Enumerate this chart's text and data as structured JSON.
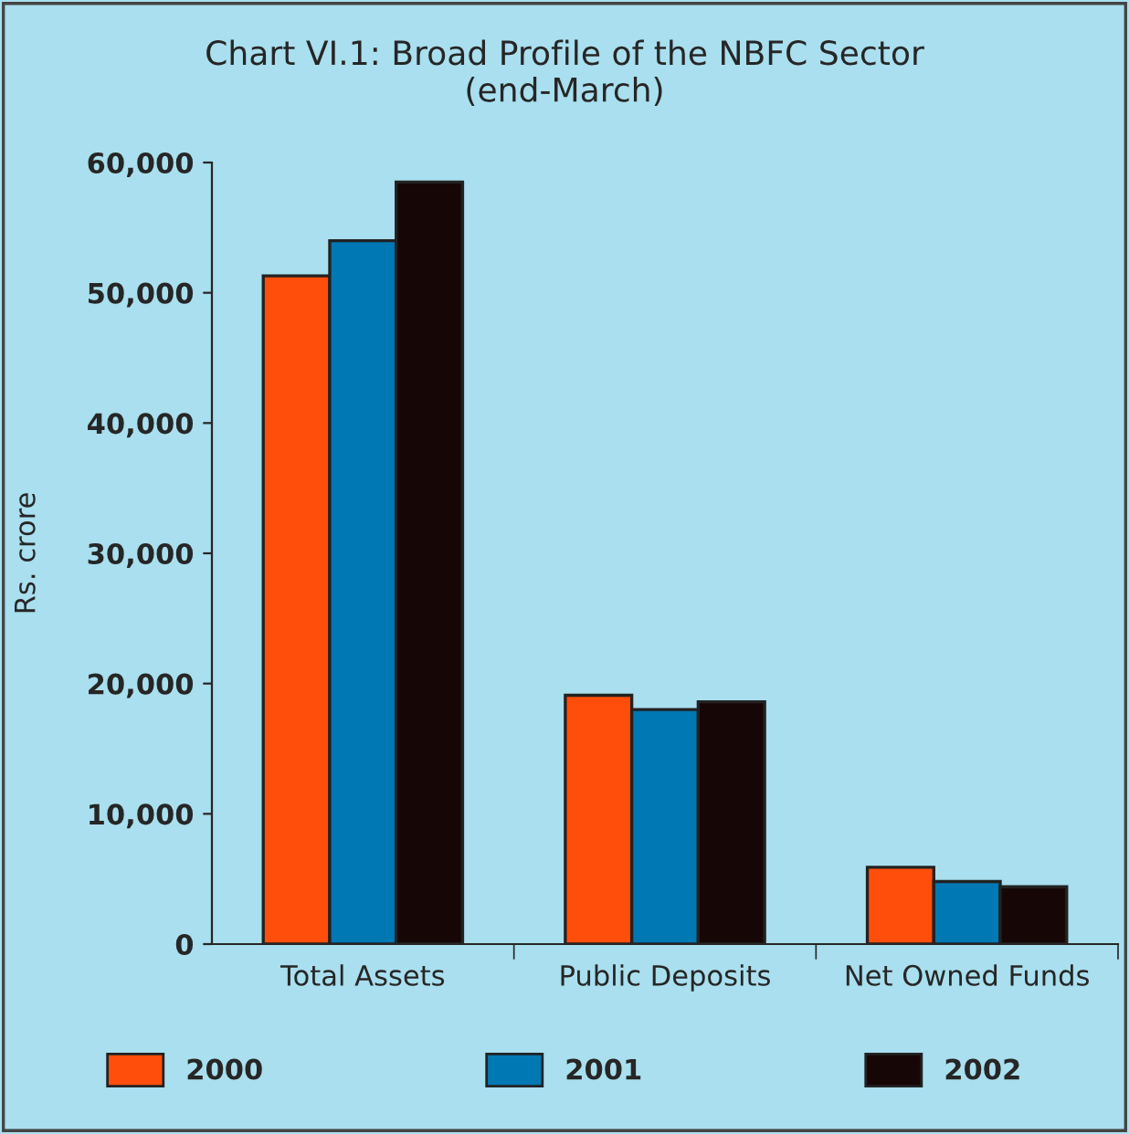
{
  "chart_data": {
    "type": "bar",
    "title": "Chart VI.1: Broad Profile of the NBFC Sector\n(end-March)",
    "ylabel": "Rs. crore",
    "categories": [
      "Total Assets",
      "Public Deposits",
      "Net Owned Funds"
    ],
    "series": [
      {
        "name": "2000",
        "color": "#ff4e0b",
        "values": [
          51300,
          19100,
          5900
        ]
      },
      {
        "name": "2001",
        "color": "#0078b4",
        "values": [
          54000,
          18000,
          4800
        ]
      },
      {
        "name": "2002",
        "color": "#170606",
        "values": [
          58500,
          18600,
          4400
        ]
      }
    ],
    "ylim": [
      0,
      60000
    ],
    "yticks": [
      {
        "value": 0,
        "label": "0"
      },
      {
        "value": 10000,
        "label": "10,000"
      },
      {
        "value": 20000,
        "label": "20,000"
      },
      {
        "value": 30000,
        "label": "30,000"
      },
      {
        "value": 40000,
        "label": "40,000"
      },
      {
        "value": 50000,
        "label": "50,000"
      },
      {
        "value": 60000,
        "label": "60,000"
      }
    ],
    "grid": false,
    "legend": "bottom"
  }
}
